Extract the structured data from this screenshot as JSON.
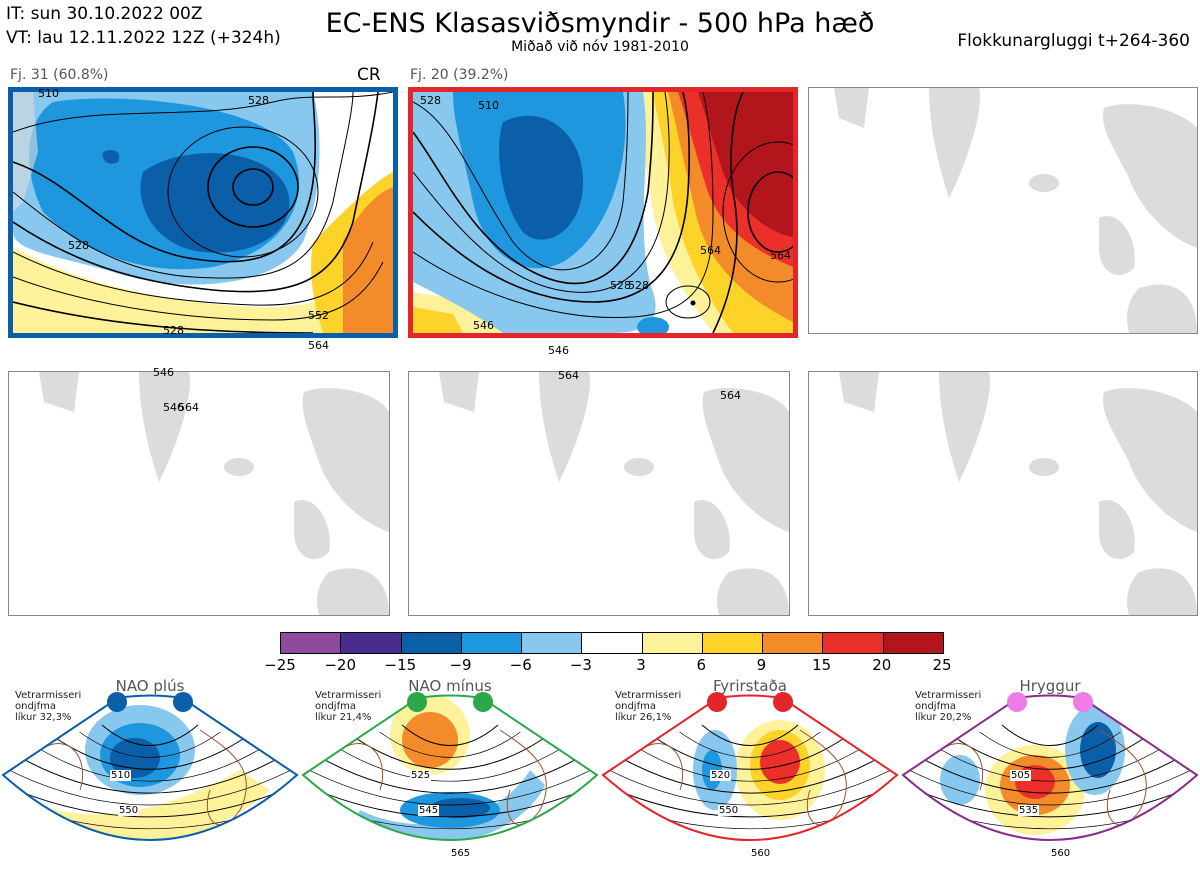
{
  "header": {
    "it_line": "IT: sun 30.10.2022 00Z",
    "vt_line": "VT: lau 12.11.2022 12Z  (+324h)",
    "title": "EC-ENS Klasasviðsmyndir - 500 hPa hæð",
    "subtitle": "Miðað við nóv 1981-2010",
    "window": "Flokkunargluggi t+264-360"
  },
  "panels": [
    {
      "label": "Fj. 31 (60.8%)",
      "tag": "CR",
      "border_color": "#0b5ea8",
      "contour_labels": [
        "510",
        "528",
        "528",
        "528",
        "546",
        "564",
        "552",
        "564",
        "546"
      ]
    },
    {
      "label": "Fj. 20 (39.2%)",
      "tag": "",
      "border_color": "#e3262b",
      "contour_labels": [
        "528",
        "510",
        "528",
        "546",
        "564",
        "546",
        "564",
        "564",
        "528",
        "564"
      ]
    }
  ],
  "colorbar": {
    "colors": [
      "#8e4a9b",
      "#4a2c8e",
      "#0b5ea8",
      "#1f97de",
      "#88c8ee",
      "#ffffff",
      "#fdf19a",
      "#fdd32a",
      "#f48b2a",
      "#ea3028",
      "#b3151c"
    ],
    "ticks": [
      "−25",
      "−20",
      "−15",
      "−9",
      "−6",
      "−3",
      "3",
      "6",
      "9",
      "15",
      "20",
      "25"
    ]
  },
  "climatology": [
    {
      "name": "NAO plús",
      "caption": [
        "Vetrarmisseri",
        "ondjfma",
        "líkur 32,3%"
      ],
      "color": "#0b5ea8",
      "dot_color": "#0b5ea8",
      "labels": [
        "510",
        "550"
      ]
    },
    {
      "name": "NAO mínus",
      "caption": [
        "Vetrarmisseri",
        "ondjfma",
        "líkur 21,4%"
      ],
      "color": "#2ba84a",
      "dot_color": "#2ba84a",
      "labels": [
        "525",
        "545",
        "565"
      ]
    },
    {
      "name": "Fyrirstaða",
      "caption": [
        "Vetrarmisseri",
        "ondjfma",
        "líkur 26,1%"
      ],
      "color": "#e3262b",
      "dot_color": "#e3262b",
      "labels": [
        "520",
        "550",
        "560"
      ]
    },
    {
      "name": "Hryggur",
      "caption": [
        "Vetrarmisseri",
        "ondjfma",
        "líkur 20,2%"
      ],
      "color": "#8a2b8c",
      "dot_color": "#ee7be6",
      "labels": [
        "505",
        "535",
        "560"
      ]
    }
  ]
}
